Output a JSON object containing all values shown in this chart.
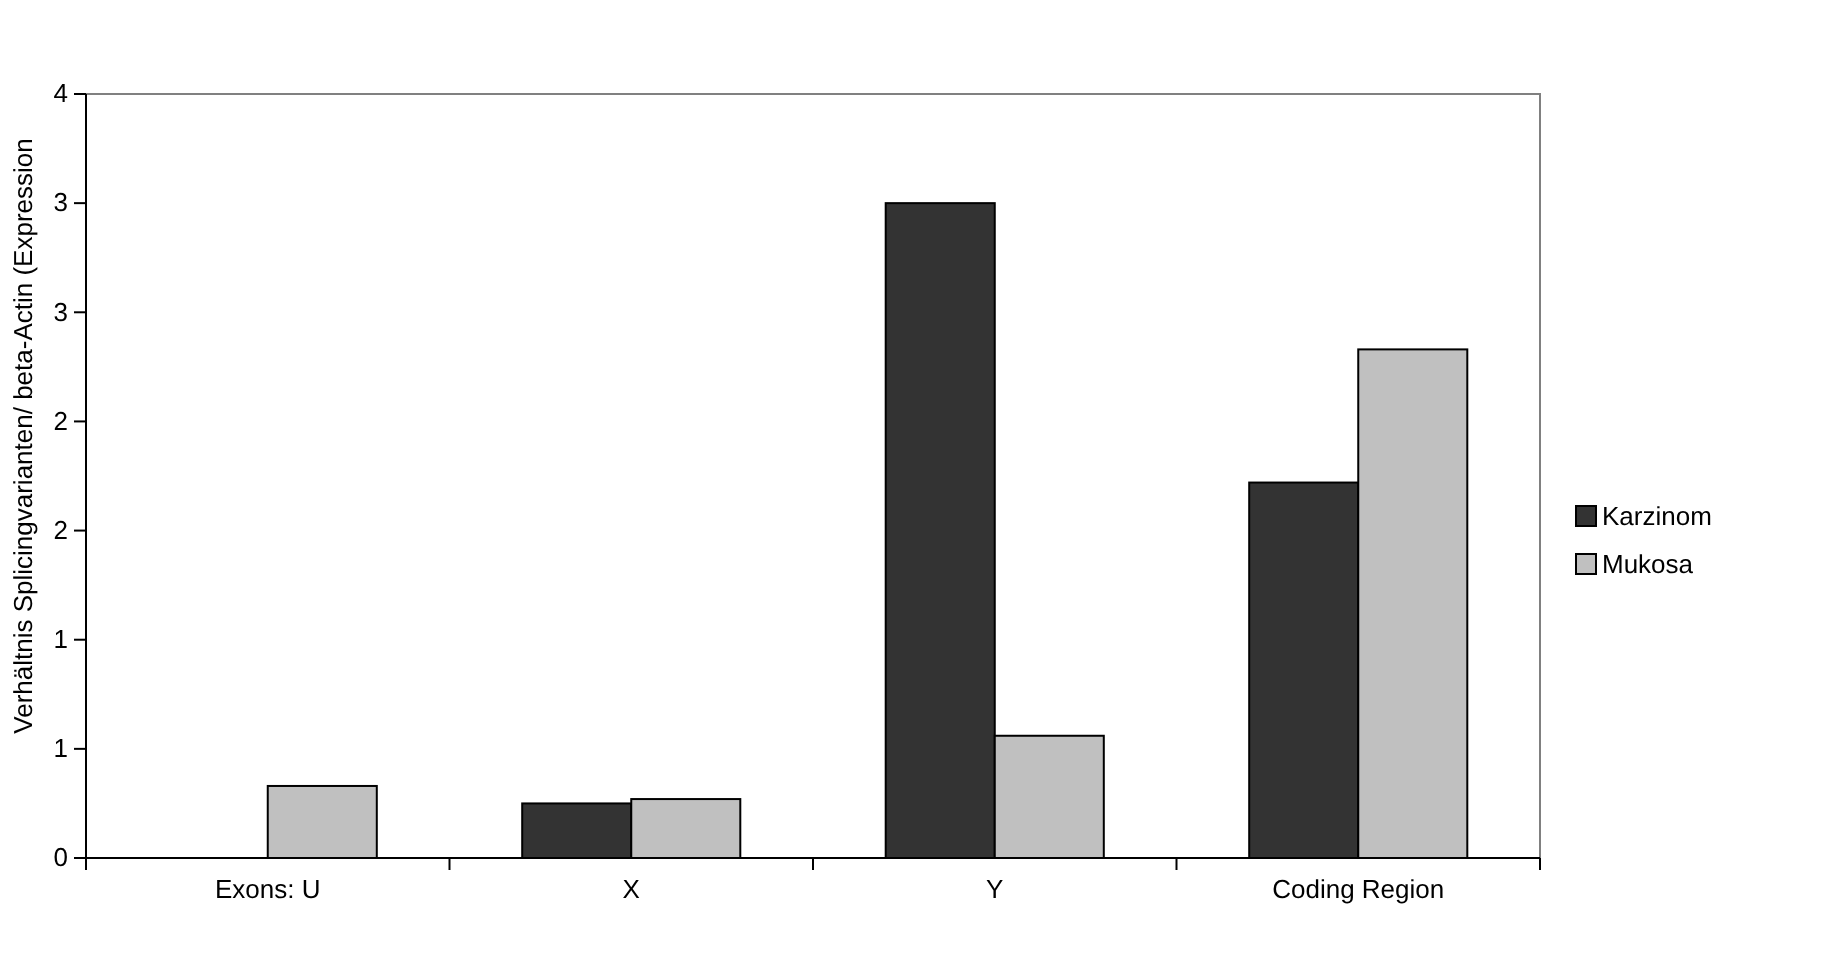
{
  "chart_data": {
    "type": "bar",
    "ylabel": "Verhältnis Splicingvarianten/ beta-Actin (Expression",
    "categories": [
      "Exons: U",
      "X",
      "Y",
      "Coding Region"
    ],
    "series": [
      {
        "name": "Karzinom",
        "color": "#333333",
        "values": [
          0,
          0.25,
          3.0,
          1.72
        ]
      },
      {
        "name": "Mukosa",
        "color": "#c0c0c0",
        "values": [
          0.33,
          0.27,
          0.56,
          2.33
        ]
      }
    ],
    "ylim": [
      0,
      3.5
    ],
    "yticks": [
      {
        "value": 0,
        "label": "0"
      },
      {
        "value": 0.5,
        "label": "1"
      },
      {
        "value": 1,
        "label": "1"
      },
      {
        "value": 1.5,
        "label": "2"
      },
      {
        "value": 2,
        "label": "2"
      },
      {
        "value": 2.5,
        "label": "3"
      },
      {
        "value": 3,
        "label": "3"
      },
      {
        "value": 3.5,
        "label": "4"
      }
    ],
    "grid": false,
    "legend": "right"
  }
}
